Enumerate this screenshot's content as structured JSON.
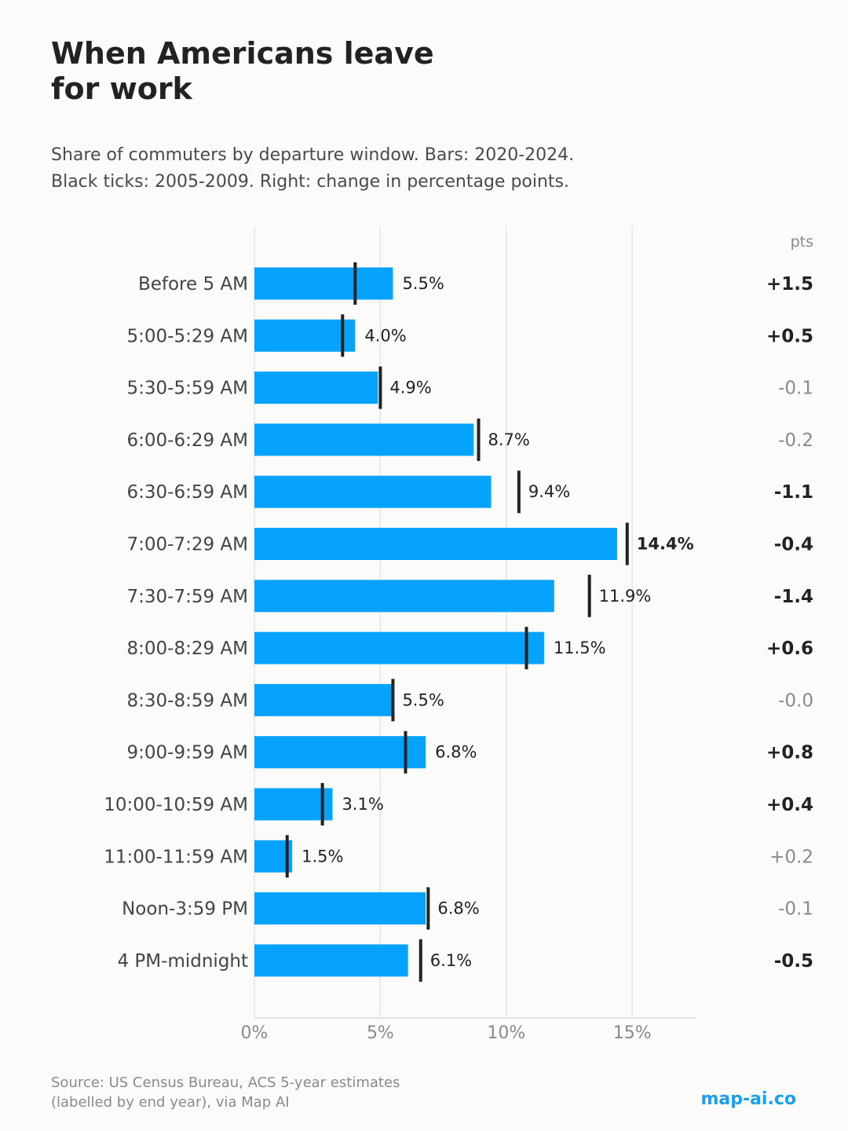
{
  "header": {
    "title_lines": [
      "When Americans leave",
      "for work"
    ],
    "subtitle_lines": [
      "Share of commuters by departure window. Bars: 2020-2024.",
      "Black ticks: 2005-2009. Right: change in percentage points."
    ]
  },
  "chart_data": {
    "type": "bar",
    "orientation": "horizontal",
    "categories": [
      "Before 5 AM",
      "5:00-5:29 AM",
      "5:30-5:59 AM",
      "6:00-6:29 AM",
      "6:30-6:59 AM",
      "7:00-7:29 AM",
      "7:30-7:59 AM",
      "8:00-8:29 AM",
      "8:30-8:59 AM",
      "9:00-9:59 AM",
      "10:00-10:59 AM",
      "11:00-11:59 AM",
      "Noon-3:59 PM",
      "4 PM-midnight"
    ],
    "series": [
      {
        "values": [
          5.5,
          4.0,
          4.9,
          8.7,
          9.4,
          14.4,
          11.9,
          11.5,
          5.5,
          6.8,
          3.1,
          1.5,
          6.8,
          6.1
        ],
        "color": "#06a3fe"
      },
      {
        "values": [
          4.0,
          3.5,
          5.0,
          8.9,
          10.5,
          14.8,
          13.3,
          10.8,
          5.5,
          6.0,
          2.7,
          1.3,
          6.9,
          6.6
        ],
        "color": "#222222",
        "marker": "tick"
      }
    ],
    "value_labels": [
      "5.5%",
      "4.0%",
      "4.9%",
      "8.7%",
      "9.4%",
      "14.4%",
      "11.9%",
      "11.5%",
      "5.5%",
      "6.8%",
      "3.1%",
      "1.5%",
      "6.8%",
      "6.1%"
    ],
    "highlight_index": 5,
    "change_header": "pts",
    "change_labels": [
      "+1.5",
      "+0.5",
      "-0.1",
      "-0.2",
      "-1.1",
      "-0.4",
      "-1.4",
      "+0.6",
      "-0.0",
      "+0.8",
      "+0.4",
      "+0.2",
      "-0.1",
      "-0.5"
    ],
    "change_emphasis": [
      true,
      true,
      false,
      false,
      true,
      true,
      true,
      true,
      false,
      true,
      true,
      false,
      false,
      true
    ],
    "xlim": [
      0,
      17.5
    ],
    "xticks": [
      0,
      5,
      10,
      15
    ],
    "xtick_labels": [
      "0%",
      "5%",
      "10%",
      "15%"
    ],
    "grid": "vertical",
    "xlabel": "",
    "ylabel": ""
  },
  "footer": {
    "source_lines": [
      "Source: US Census Bureau, ACS 5-year estimates",
      "(labelled by end year), via Map AI"
    ],
    "brand": "map-ai.co"
  },
  "colors": {
    "bar": "#06a3fe",
    "tick": "#222222",
    "text_dark": "#222222",
    "text_muted": "#8a8a8a",
    "grid": "#e4e4e4",
    "brand": "#1aa0f0"
  }
}
